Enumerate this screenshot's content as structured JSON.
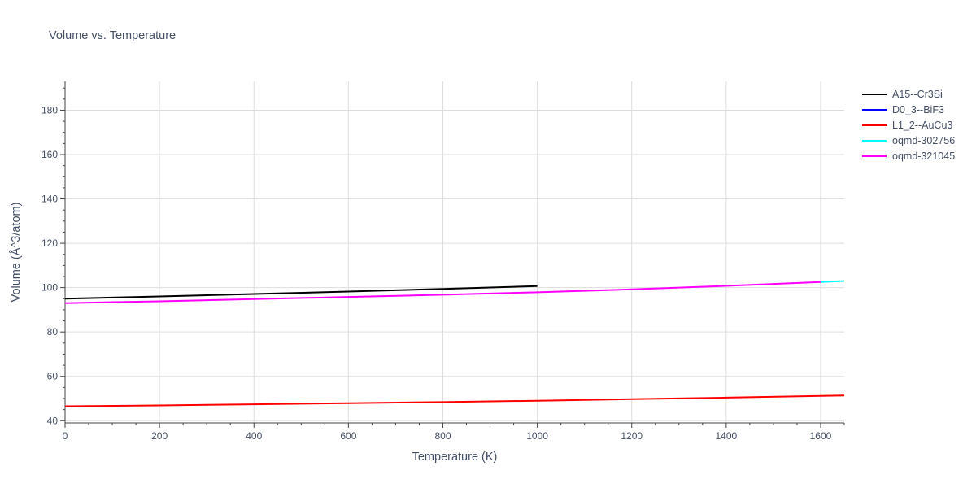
{
  "chart_data": {
    "type": "line",
    "title": "Volume vs. Temperature",
    "xlabel": "Temperature (K)",
    "ylabel": "Volume (Å^3/atom)",
    "xlim": [
      0,
      1650
    ],
    "ylim": [
      39,
      193
    ],
    "x_ticks": [
      0,
      200,
      400,
      600,
      800,
      1000,
      1200,
      1400,
      1600
    ],
    "y_ticks": [
      40,
      60,
      80,
      100,
      120,
      140,
      160,
      180
    ],
    "grid": true,
    "legend_position": "right",
    "series": [
      {
        "name": "A15--Cr3Si",
        "color": "#000000",
        "x": [
          0,
          200,
          400,
          600,
          800,
          1000
        ],
        "y": [
          95.0,
          96.0,
          97.1,
          98.2,
          99.4,
          100.7
        ]
      },
      {
        "name": "D0_3--BiF3",
        "color": "#0000ff",
        "x": [],
        "y": []
      },
      {
        "name": "L1_2--AuCu3",
        "color": "#ff0000",
        "x": [
          0,
          200,
          400,
          600,
          800,
          1000,
          1200,
          1400,
          1650
        ],
        "y": [
          46.5,
          46.9,
          47.4,
          47.9,
          48.4,
          49.0,
          49.7,
          50.4,
          51.4
        ]
      },
      {
        "name": "oqmd-302756",
        "color": "#00ffff",
        "x": [
          1600,
          1650
        ],
        "y": [
          102.5,
          103.0
        ]
      },
      {
        "name": "oqmd-321045",
        "color": "#ff00ff",
        "x": [
          0,
          200,
          400,
          600,
          800,
          1000,
          1200,
          1400,
          1600
        ],
        "y": [
          93.0,
          93.8,
          94.8,
          95.8,
          96.8,
          97.9,
          99.2,
          100.8,
          102.5
        ]
      }
    ]
  }
}
